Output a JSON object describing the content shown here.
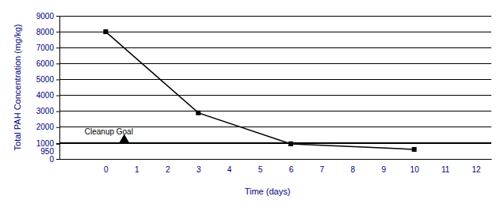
{
  "chart_data": {
    "type": "line",
    "x_label": "Time (days)",
    "y_label": "Total PAH Concentration (mg/kg)",
    "xlim": [
      -1.5,
      12.5
    ],
    "xticks": [
      0,
      1,
      2,
      3,
      4,
      5,
      6,
      7,
      8,
      9,
      10,
      11,
      12
    ],
    "ylim": [
      0,
      9000
    ],
    "yticks": [
      0,
      950,
      1000,
      2000,
      3000,
      4000,
      5000,
      6000,
      7000,
      8000,
      9000
    ],
    "grid": true,
    "series": [
      {
        "x": [
          0,
          3,
          6,
          10
        ],
        "values": [
          8000,
          2900,
          950,
          600
        ],
        "color": "#000000",
        "marker": "square",
        "line_style": "solid"
      },
      {
        "name": "Cleanup Goal",
        "x": [
          0.6
        ],
        "values": [
          1200
        ],
        "color": "#000000",
        "marker": "triangle",
        "line_style": "none"
      }
    ]
  }
}
